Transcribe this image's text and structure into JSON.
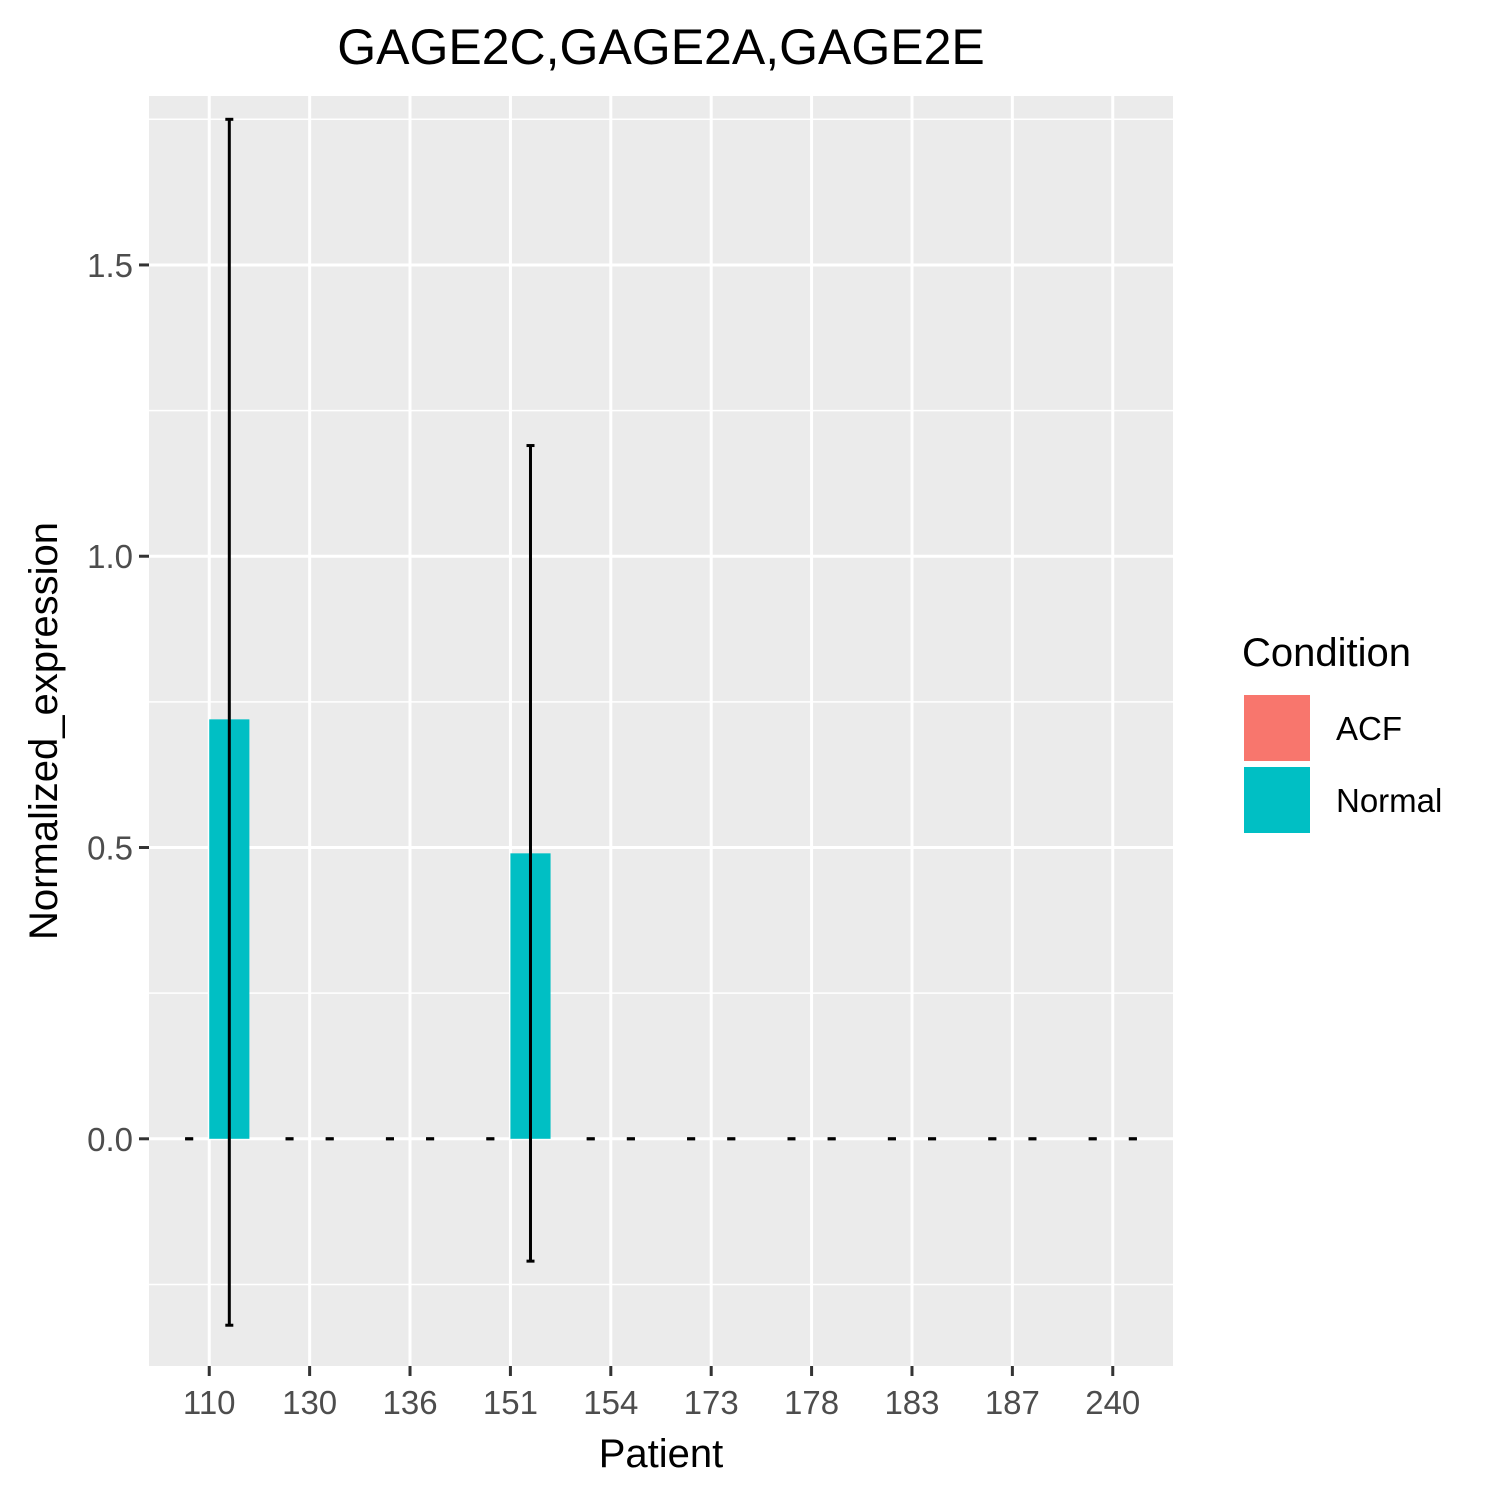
{
  "chart_data": {
    "type": "bar",
    "title": "GAGE2C,GAGE2A,GAGE2E",
    "xlabel": "Patient",
    "ylabel": "Normalized_expression",
    "categories": [
      "110",
      "130",
      "136",
      "151",
      "154",
      "173",
      "178",
      "183",
      "187",
      "240"
    ],
    "ylim": [
      -0.39,
      1.79
    ],
    "yticks": [
      0.0,
      0.5,
      1.0,
      1.5
    ],
    "ytick_labels": [
      "0.0",
      "0.5",
      "1.0",
      "1.5"
    ],
    "grid": true,
    "legend": {
      "title": "Condition",
      "placement": "right",
      "entries": [
        {
          "label": "ACF",
          "color": "#F8766D"
        },
        {
          "label": "Normal",
          "color": "#00BFC4"
        }
      ]
    },
    "series": [
      {
        "name": "ACF",
        "color": "#F8766D",
        "values": [
          0,
          0,
          0,
          0,
          0,
          0,
          0,
          0,
          0,
          0
        ],
        "error_low": [
          0,
          0,
          0,
          0,
          0,
          0,
          0,
          0,
          0,
          0
        ],
        "error_high": [
          0,
          0,
          0,
          0,
          0,
          0,
          0,
          0,
          0,
          0
        ]
      },
      {
        "name": "Normal",
        "color": "#00BFC4",
        "values": [
          0.72,
          0,
          0,
          0.49,
          0,
          0,
          0,
          0,
          0,
          0
        ],
        "error_low": [
          -0.32,
          0,
          0,
          -0.21,
          0,
          0,
          0,
          0,
          0,
          0
        ],
        "error_high": [
          1.75,
          0,
          0,
          1.19,
          0,
          0,
          0,
          0,
          0,
          0
        ]
      }
    ]
  }
}
